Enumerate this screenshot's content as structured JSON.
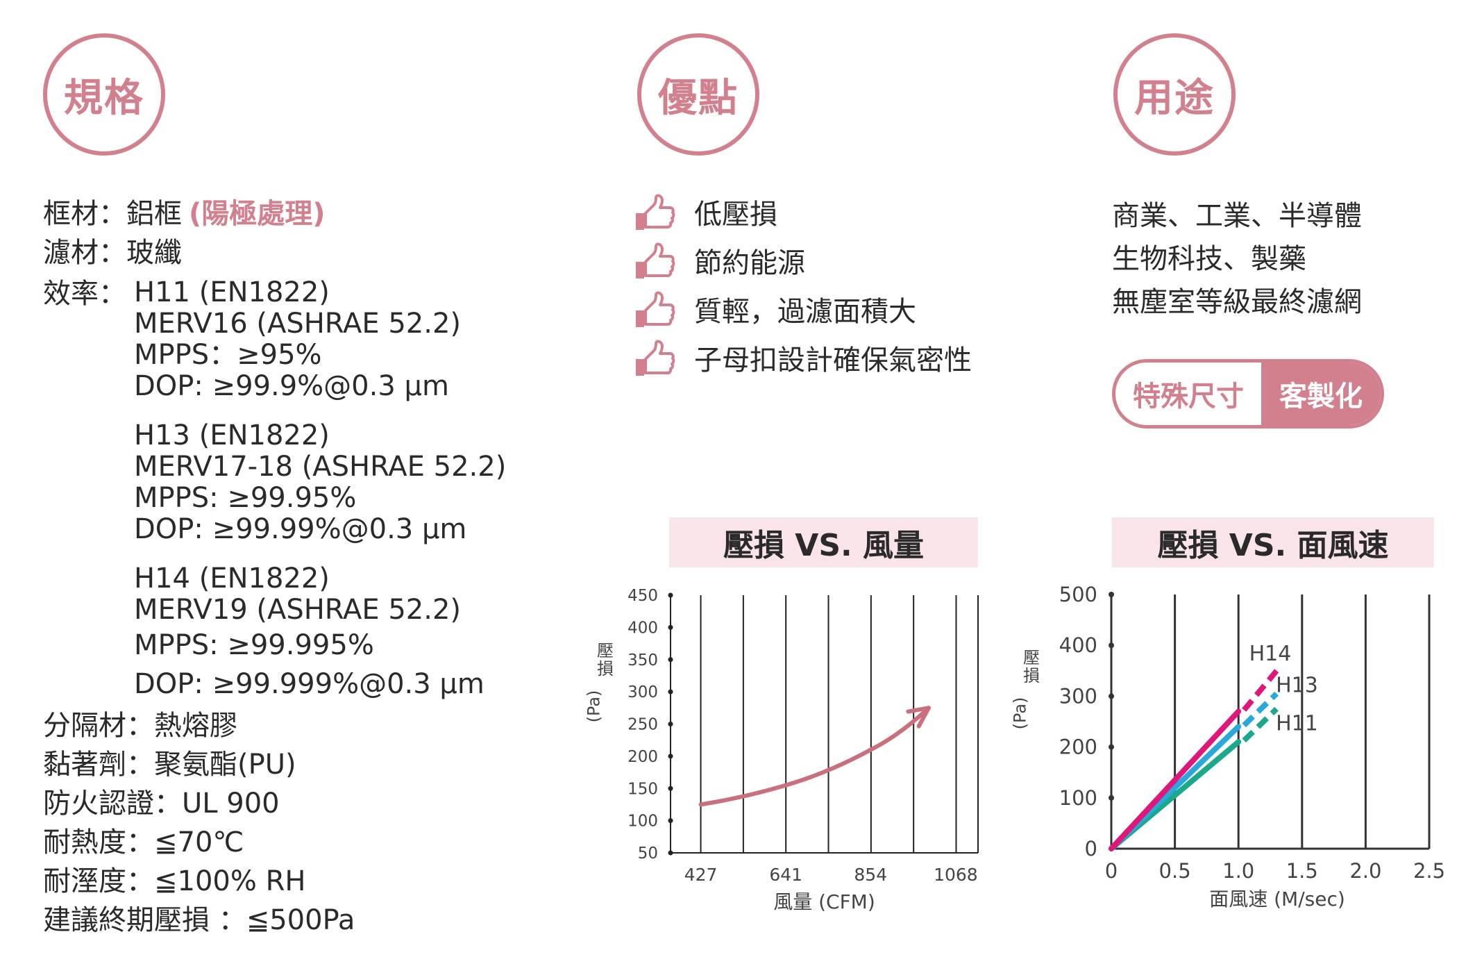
{
  "headings": {
    "spec": "規格",
    "advantages": "優點",
    "uses": "用途"
  },
  "spec": {
    "frame_label": "框材：鋁框",
    "frame_note": "(陽極處理)",
    "media": "濾材：玻纖",
    "efficiency_label": "效率：",
    "groups": [
      [
        "H11 (EN1822)",
        "MERV16 (ASHRAE 52.2)",
        "MPPS：≥95%",
        "DOP: ≥99.9%@0.3 µm"
      ],
      [
        "H13 (EN1822)",
        "MERV17-18 (ASHRAE 52.2)",
        "MPPS: ≥99.95%",
        "DOP: ≥99.99%@0.3 µm"
      ],
      [
        "H14 (EN1822)",
        "MERV19 (ASHRAE 52.2)",
        "MPPS: ≥99.995%",
        "DOP: ≥99.999%@0.3 µm"
      ]
    ],
    "separator": "分隔材：熱熔膠",
    "adhesive": "黏著劑：聚氨酯(PU)",
    "fire": "防火認證：UL 900",
    "heat": "耐熱度：≦70℃",
    "humidity": "耐溼度：≦100% RH",
    "final_pressure": "建議終期壓損 ：≦500Pa"
  },
  "advantages": [
    "低壓損",
    "節約能源",
    "質輕，過濾面積大",
    "子母扣設計確保氣密性"
  ],
  "advantages_icon": "thumbs-up-icon",
  "uses": [
    "商業、工業、半導體",
    "生物科技、製藥",
    "無塵室等級最終濾網"
  ],
  "custom_badge": {
    "left": "特殊尺寸",
    "right": "客製化"
  },
  "colors": {
    "accent": "#d27f8e",
    "title_bg": "#f9e4ea",
    "h14": "#e0177a",
    "h13": "#2aa8dc",
    "h11": "#1aa98a"
  },
  "chart_data": [
    {
      "type": "line",
      "title": "壓損 VS. 風量",
      "xlabel": "風量 (CFM)",
      "ylabel": "壓損 (Pa)",
      "x_ticks": [
        427,
        641,
        854,
        1068
      ],
      "y_ticks": [
        50,
        100,
        150,
        200,
        250,
        300,
        350,
        400,
        450
      ],
      "xlim": [
        351,
        1124
      ],
      "ylim": [
        50,
        450
      ],
      "grid": "vertical",
      "series": [
        {
          "x": [
            427,
            641,
            854,
            1000
          ],
          "y": [
            125,
            155,
            210,
            275
          ],
          "arrow": true
        }
      ]
    },
    {
      "type": "line",
      "title": "壓損 VS. 面風速",
      "xlabel": "面風速 (M/sec)",
      "ylabel": "壓損 (Pa)",
      "x_ticks": [
        0,
        0.5,
        1.0,
        1.5,
        2.0,
        2.5
      ],
      "x_tick_labels": [
        "0",
        "0.5",
        "1.0",
        "1.5",
        "2.0",
        "2.5"
      ],
      "y_ticks": [
        0,
        100,
        200,
        300,
        400,
        500
      ],
      "xlim": [
        0,
        2.5
      ],
      "ylim": [
        0,
        500
      ],
      "grid": "vertical",
      "series": [
        {
          "name": "H14",
          "x": [
            0,
            1.0
          ],
          "y": [
            0,
            270
          ],
          "x_dashed": [
            1.0,
            1.3
          ],
          "y_dashed": [
            270,
            350
          ]
        },
        {
          "name": "H13",
          "x": [
            0,
            1.0
          ],
          "y": [
            0,
            240
          ],
          "x_dashed": [
            1.0,
            1.3
          ],
          "y_dashed": [
            240,
            305
          ]
        },
        {
          "name": "H11",
          "x": [
            0,
            1.0
          ],
          "y": [
            0,
            210
          ],
          "x_dashed": [
            1.0,
            1.3
          ],
          "y_dashed": [
            210,
            275
          ]
        }
      ]
    }
  ]
}
